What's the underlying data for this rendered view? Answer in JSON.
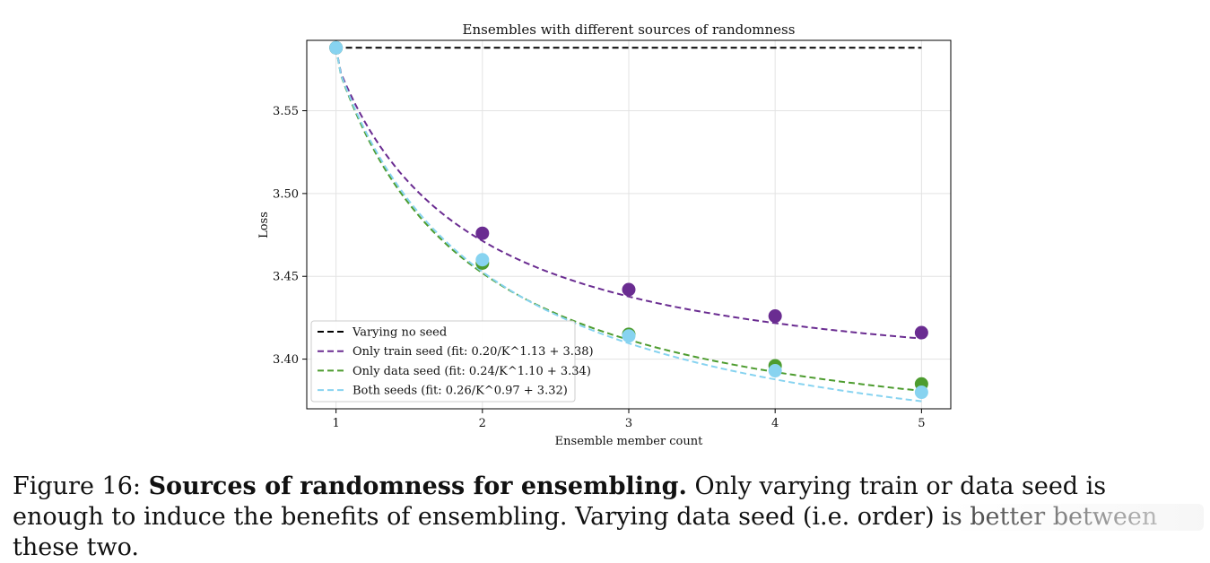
{
  "chart_data": {
    "type": "line",
    "title": "Ensembles with different sources of randomness",
    "xlabel": "Ensemble member count",
    "ylabel": "Loss",
    "xlim": [
      0.8,
      5.2
    ],
    "ylim": [
      3.37,
      3.5925
    ],
    "xticks": [
      1,
      2,
      3,
      4,
      5
    ],
    "yticks": [
      3.4,
      3.45,
      3.5,
      3.55
    ],
    "ytick_labels": [
      "3.40",
      "3.45",
      "3.50",
      "3.55"
    ],
    "grid": true,
    "legend_position": "lower-left",
    "series": [
      {
        "name": "Varying no seed",
        "color": "#000000",
        "points": false,
        "x": [
          1,
          5
        ],
        "y": [
          3.588,
          3.588
        ]
      },
      {
        "name": "Only train seed (fit: 0.20/K^1.13 + 3.38)",
        "color": "#6a2c91",
        "x": [
          1,
          2,
          3,
          4,
          5
        ],
        "y": [
          3.588,
          3.476,
          3.442,
          3.426,
          3.416
        ],
        "fit": {
          "a": 0.2,
          "b": 1.13,
          "c": 3.38
        }
      },
      {
        "name": "Only data seed (fit: 0.24/K^1.10 + 3.34)",
        "color": "#4d9c2f",
        "x": [
          1,
          2,
          3,
          4,
          5
        ],
        "y": [
          3.588,
          3.458,
          3.415,
          3.396,
          3.385
        ],
        "fit": {
          "a": 0.24,
          "b": 1.1,
          "c": 3.34
        }
      },
      {
        "name": "Both seeds (fit: 0.26/K^0.97 + 3.32)",
        "color": "#87d3f0",
        "x": [
          1,
          2,
          3,
          4,
          5
        ],
        "y": [
          3.588,
          3.46,
          3.414,
          3.393,
          3.38
        ],
        "fit": {
          "a": 0.26,
          "b": 0.97,
          "c": 3.32
        }
      }
    ]
  },
  "caption": {
    "label": "Figure 16:",
    "bold": "Sources of randomness for ensembling.",
    "rest": "Only varying train or data seed is enough to induce the benefits of ensembling. Varying data seed (i.e. order) is better between these two."
  }
}
